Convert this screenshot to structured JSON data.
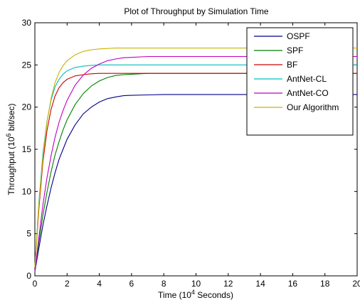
{
  "chart_data": {
    "type": "line",
    "title": "Plot of Throughput by Simulation Time",
    "xlabel": {
      "pre": "Time (10",
      "sup": "4",
      "post": " Seconds)"
    },
    "ylabel": {
      "pre": "Throughput (10",
      "sup": "6",
      "post": " bit/sec)"
    },
    "xlim": [
      0,
      20
    ],
    "ylim": [
      0,
      30
    ],
    "xticks": [
      0,
      2,
      4,
      6,
      8,
      10,
      12,
      14,
      16,
      18,
      20
    ],
    "yticks": [
      0,
      5,
      10,
      15,
      20,
      25,
      30
    ],
    "grid": false,
    "legend_position": "top-right",
    "series": [
      {
        "name": "OSPF",
        "color": "#00008b",
        "x": [
          0,
          0.25,
          0.5,
          0.75,
          1,
          1.25,
          1.5,
          1.75,
          2,
          2.5,
          3,
          3.5,
          4,
          4.5,
          5,
          5.5,
          6,
          7,
          8,
          10,
          12,
          14,
          16,
          18,
          20
        ],
        "y": [
          0.5,
          3.3,
          6.0,
          8.3,
          10.4,
          12.2,
          13.8,
          15.0,
          16.2,
          17.9,
          19.2,
          20.0,
          20.6,
          21.0,
          21.2,
          21.35,
          21.4,
          21.45,
          21.5,
          21.5,
          21.5,
          21.5,
          21.5,
          21.5,
          21.5
        ]
      },
      {
        "name": "SPF",
        "color": "#008000",
        "x": [
          0,
          0.25,
          0.5,
          0.75,
          1,
          1.25,
          1.5,
          1.75,
          2,
          2.5,
          3,
          3.5,
          4,
          4.5,
          5,
          5.5,
          6,
          7,
          8,
          10,
          12,
          14,
          16,
          18,
          20
        ],
        "y": [
          0.5,
          4.0,
          7.2,
          9.9,
          12.3,
          14.3,
          15.9,
          17.3,
          18.5,
          20.3,
          21.6,
          22.5,
          23.1,
          23.5,
          23.75,
          23.85,
          23.9,
          24.0,
          24.0,
          24.0,
          24.0,
          24.0,
          24.0,
          24.0,
          24.0
        ]
      },
      {
        "name": "BF",
        "color": "#cc0000",
        "x": [
          0,
          0.25,
          0.5,
          0.75,
          1,
          1.25,
          1.5,
          1.75,
          2,
          2.5,
          3,
          3.5,
          4,
          5,
          6,
          8,
          10,
          12,
          14,
          16,
          18,
          20
        ],
        "y": [
          1.0,
          8.0,
          13.5,
          17.2,
          19.7,
          21.3,
          22.3,
          22.9,
          23.3,
          23.7,
          23.85,
          23.95,
          24.0,
          24.0,
          24.0,
          24.0,
          24.0,
          24.0,
          24.0,
          24.0,
          24.0,
          24.0
        ]
      },
      {
        "name": "AntNet-CL",
        "color": "#00bfbf",
        "x": [
          0,
          0.25,
          0.5,
          0.75,
          1,
          1.25,
          1.5,
          1.75,
          2,
          2.5,
          3,
          3.5,
          4,
          5,
          6,
          8,
          10,
          12,
          14,
          16,
          18,
          20
        ],
        "y": [
          1.0,
          8.8,
          14.5,
          18.3,
          20.8,
          22.4,
          23.3,
          23.9,
          24.3,
          24.7,
          24.85,
          24.95,
          25.0,
          25.0,
          25.0,
          25.0,
          25.0,
          25.0,
          25.0,
          25.0,
          25.0,
          25.0
        ]
      },
      {
        "name": "AntNet-CO",
        "color": "#bf00bf",
        "x": [
          0,
          0.25,
          0.5,
          0.75,
          1,
          1.25,
          1.5,
          1.75,
          2,
          2.5,
          3,
          3.5,
          4,
          4.5,
          5,
          5.5,
          6,
          7,
          8,
          10,
          12,
          14,
          16,
          18,
          20
        ],
        "y": [
          0.5,
          4.6,
          8.4,
          11.6,
          14.2,
          16.4,
          18.2,
          19.6,
          20.8,
          22.6,
          23.8,
          24.6,
          25.1,
          25.5,
          25.7,
          25.85,
          25.9,
          26.0,
          26.0,
          26.0,
          26.0,
          26.0,
          26.0,
          26.0,
          26.0
        ]
      },
      {
        "name": "Our Algorithm",
        "color": "#c8b400",
        "x": [
          0,
          0.25,
          0.5,
          0.75,
          1,
          1.25,
          1.5,
          1.75,
          2,
          2.5,
          3,
          3.5,
          4,
          4.5,
          5,
          6,
          7,
          8,
          10,
          12,
          14,
          16,
          18,
          20
        ],
        "y": [
          1.0,
          8.5,
          14.0,
          18.2,
          21.0,
          22.9,
          24.1,
          24.9,
          25.5,
          26.2,
          26.6,
          26.8,
          26.9,
          26.95,
          27.0,
          27.0,
          27.0,
          27.0,
          27.0,
          27.0,
          27.0,
          27.0,
          27.0,
          27.0
        ]
      }
    ]
  }
}
